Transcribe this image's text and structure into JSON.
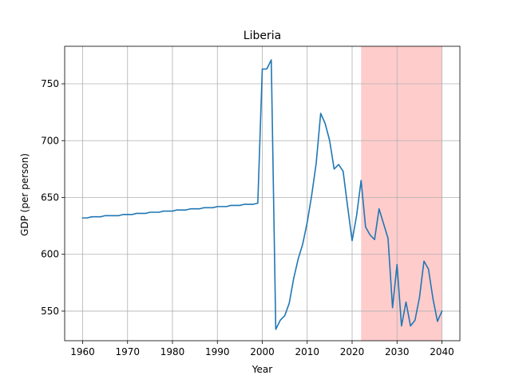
{
  "chart_data": {
    "type": "line",
    "title": "Liberia",
    "xlabel": "Year",
    "ylabel": "GDP (per person)",
    "xlim": [
      1956,
      2044
    ],
    "ylim": [
      524,
      783
    ],
    "xticks": [
      1960,
      1970,
      1980,
      1990,
      2000,
      2010,
      2020,
      2030,
      2040
    ],
    "yticks": [
      550,
      600,
      650,
      700,
      750
    ],
    "grid": true,
    "line_color": "#1f77b4",
    "highlight": {
      "x_start": 2022,
      "x_end": 2040,
      "color": "#ff9999",
      "opacity": 0.5
    },
    "series": [
      {
        "x": [
          1960,
          1961,
          1962,
          1963,
          1964,
          1965,
          1966,
          1967,
          1968,
          1969,
          1970,
          1971,
          1972,
          1973,
          1974,
          1975,
          1976,
          1977,
          1978,
          1979,
          1980,
          1981,
          1982,
          1983,
          1984,
          1985,
          1986,
          1987,
          1988,
          1989,
          1990,
          1991,
          1992,
          1993,
          1994,
          1995,
          1996,
          1997,
          1998,
          1999,
          2000,
          2001,
          2002,
          2003,
          2004,
          2005,
          2006,
          2007,
          2008,
          2009,
          2010,
          2011,
          2012,
          2013,
          2014,
          2015,
          2016,
          2017,
          2018,
          2019,
          2020,
          2021,
          2022,
          2023,
          2024,
          2025,
          2026,
          2027,
          2028,
          2029,
          2030,
          2031,
          2032,
          2033,
          2034,
          2035,
          2036,
          2037,
          2038,
          2039,
          2040
        ],
        "y": [
          632,
          632,
          633,
          633,
          633,
          634,
          634,
          634,
          634,
          635,
          635,
          635,
          636,
          636,
          636,
          637,
          637,
          637,
          638,
          638,
          638,
          639,
          639,
          639,
          640,
          640,
          640,
          641,
          641,
          641,
          642,
          642,
          642,
          643,
          643,
          643,
          644,
          644,
          644,
          645,
          763,
          763,
          771,
          534,
          542,
          546,
          557,
          579,
          596,
          609,
          628,
          652,
          680,
          724,
          715,
          700,
          675,
          679,
          673,
          642,
          612,
          634,
          665,
          624,
          617,
          613,
          640,
          627,
          614,
          553,
          591,
          537,
          558,
          537,
          542,
          562,
          594,
          587,
          561,
          541,
          550
        ]
      }
    ]
  }
}
